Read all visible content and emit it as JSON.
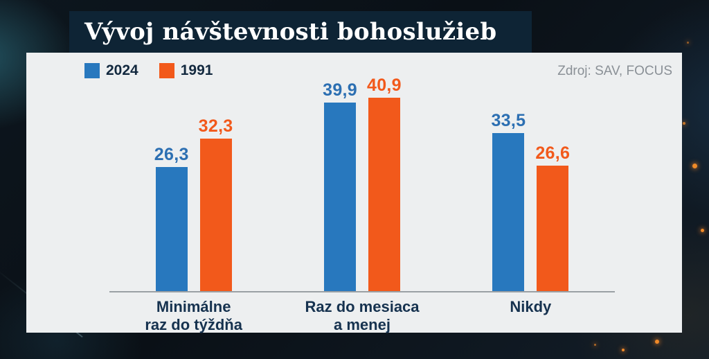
{
  "title": "Vývoj návštevnosti bohoslužieb",
  "source": "Zdroj: SAV, FOCUS",
  "legend": [
    {
      "label": "2024",
      "color": "#2878be"
    },
    {
      "label": "1991",
      "color": "#f2591b"
    }
  ],
  "colors": {
    "blue": "#2878be",
    "orange": "#f2591b",
    "navy": "#0e2435",
    "panel_background": "#edeff0",
    "value_blue": "#2c6fb2",
    "category_text": "#16324f",
    "source_text": "#8a9096",
    "axis_line": "#9aa0a4"
  },
  "chart_data": {
    "type": "bar",
    "title": "Vývoj návštevnosti bohoslužieb",
    "categories": [
      "Minimálne\nraz do týždňa",
      "Raz do mesiaca\na menej",
      "Nikdy"
    ],
    "series": [
      {
        "name": "2024",
        "color": "#2878be",
        "values": [
          26.3,
          39.9,
          33.5
        ],
        "display": [
          "26,3",
          "39,9",
          "33,5"
        ]
      },
      {
        "name": "1991",
        "color": "#f2591b",
        "values": [
          32.3,
          40.9,
          26.6
        ],
        "display": [
          "32,3",
          "40,9",
          "26,6"
        ]
      }
    ],
    "ylim": [
      0,
      44
    ],
    "ylabel": "",
    "xlabel": "",
    "grid": false,
    "legend_position": "top-left",
    "value_format": "comma-decimal-percent-of-respondents"
  }
}
